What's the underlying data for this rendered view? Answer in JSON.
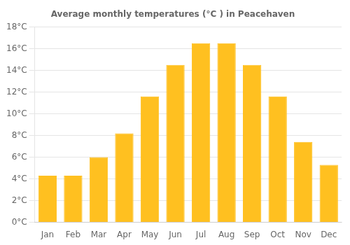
{
  "chart_data": {
    "type": "bar",
    "title": "Average monthly temperatures (°C ) in Peacehaven",
    "categories": [
      "Jan",
      "Feb",
      "Mar",
      "Apr",
      "May",
      "Jun",
      "Jul",
      "Aug",
      "Sep",
      "Oct",
      "Nov",
      "Dec"
    ],
    "values": [
      4.3,
      4.3,
      6.0,
      8.2,
      11.6,
      14.5,
      16.5,
      16.5,
      14.5,
      11.6,
      7.4,
      5.3
    ],
    "color": "#FFC020",
    "ylim": [
      0,
      18
    ],
    "yticks": [
      {
        "value": 0,
        "label": "0°C"
      },
      {
        "value": 2,
        "label": "2°C"
      },
      {
        "value": 4,
        "label": "4°C"
      },
      {
        "value": 6,
        "label": "6°C"
      },
      {
        "value": 8,
        "label": "8°C"
      },
      {
        "value": 10,
        "label": "10°C"
      },
      {
        "value": 12,
        "label": "12°C"
      },
      {
        "value": 14,
        "label": "14°C"
      },
      {
        "value": 16,
        "label": "16°C"
      },
      {
        "value": 18,
        "label": "18°C"
      }
    ],
    "grid": true
  }
}
